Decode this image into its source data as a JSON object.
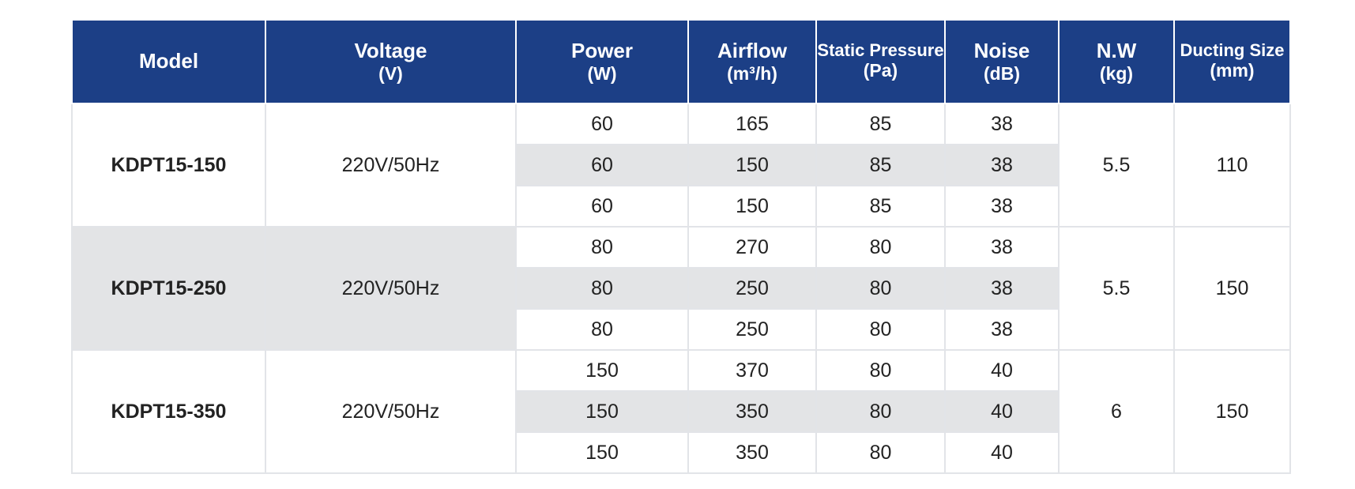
{
  "headers": [
    {
      "title": "Model",
      "unit": ""
    },
    {
      "title": "Voltage",
      "unit": "(V)"
    },
    {
      "title": "Power",
      "unit": "(W)"
    },
    {
      "title": "Airflow",
      "unit": "(m³/h)"
    },
    {
      "title": "Static Pressure",
      "unit": "(Pa)"
    },
    {
      "title": "Noise",
      "unit": "(dB)"
    },
    {
      "title": "N.W",
      "unit": "(kg)"
    },
    {
      "title": "Ducting Size",
      "unit": "(mm)"
    }
  ],
  "models": [
    {
      "model": "KDPT15-150",
      "voltage": "220V/50Hz",
      "nw": "5.5",
      "ducting": "110",
      "rows": [
        {
          "power": "60",
          "airflow": "165",
          "pressure": "85",
          "noise": "38"
        },
        {
          "power": "60",
          "airflow": "150",
          "pressure": "85",
          "noise": "38"
        },
        {
          "power": "60",
          "airflow": "150",
          "pressure": "85",
          "noise": "38"
        }
      ]
    },
    {
      "model": "KDPT15-250",
      "voltage": "220V/50Hz",
      "nw": "5.5",
      "ducting": "150",
      "rows": [
        {
          "power": "80",
          "airflow": "270",
          "pressure": "80",
          "noise": "38"
        },
        {
          "power": "80",
          "airflow": "250",
          "pressure": "80",
          "noise": "38"
        },
        {
          "power": "80",
          "airflow": "250",
          "pressure": "80",
          "noise": "38"
        }
      ]
    },
    {
      "model": "KDPT15-350",
      "voltage": "220V/50Hz",
      "nw": "6",
      "ducting": "150",
      "rows": [
        {
          "power": "150",
          "airflow": "370",
          "pressure": "80",
          "noise": "40"
        },
        {
          "power": "150",
          "airflow": "350",
          "pressure": "80",
          "noise": "40"
        },
        {
          "power": "150",
          "airflow": "350",
          "pressure": "80",
          "noise": "40"
        }
      ]
    }
  ],
  "colors": {
    "header_bg": "#1c3f86",
    "shade": "#e3e4e6",
    "border": "#e2e4e8"
  }
}
